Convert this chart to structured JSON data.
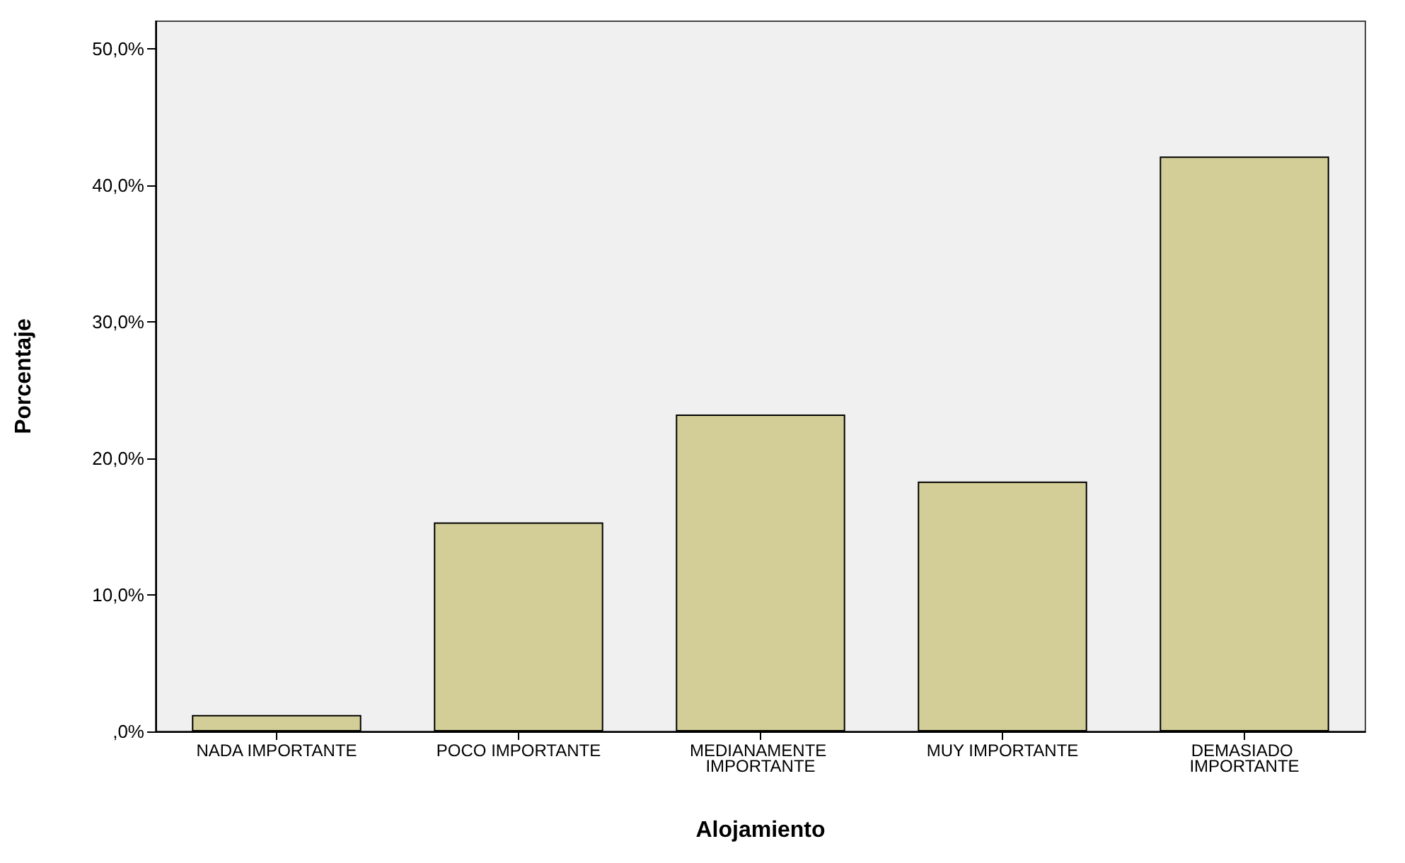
{
  "chart_data": {
    "type": "bar",
    "categories": [
      "NADA IMPORTANTE",
      "POCO IMPORTANTE",
      "MEDIANAMENTE IMPORTANTE",
      "MUY IMPORTANTE",
      "DEMASIADO IMPORTANTE"
    ],
    "values": [
      1.2,
      15.3,
      23.2,
      18.3,
      42.1
    ],
    "color": "#d3ce97",
    "xlabel": "Alojamiento",
    "ylabel": "Porcentaje",
    "ylim": [
      0,
      52
    ],
    "yticks": [
      {
        "value": 0,
        "label": ",0%"
      },
      {
        "value": 10,
        "label": "10,0%"
      },
      {
        "value": 20,
        "label": "20,0%"
      },
      {
        "value": 30,
        "label": "30,0%"
      },
      {
        "value": 40,
        "label": "40,0%"
      },
      {
        "value": 50,
        "label": "50,0%"
      }
    ],
    "grid": false
  }
}
